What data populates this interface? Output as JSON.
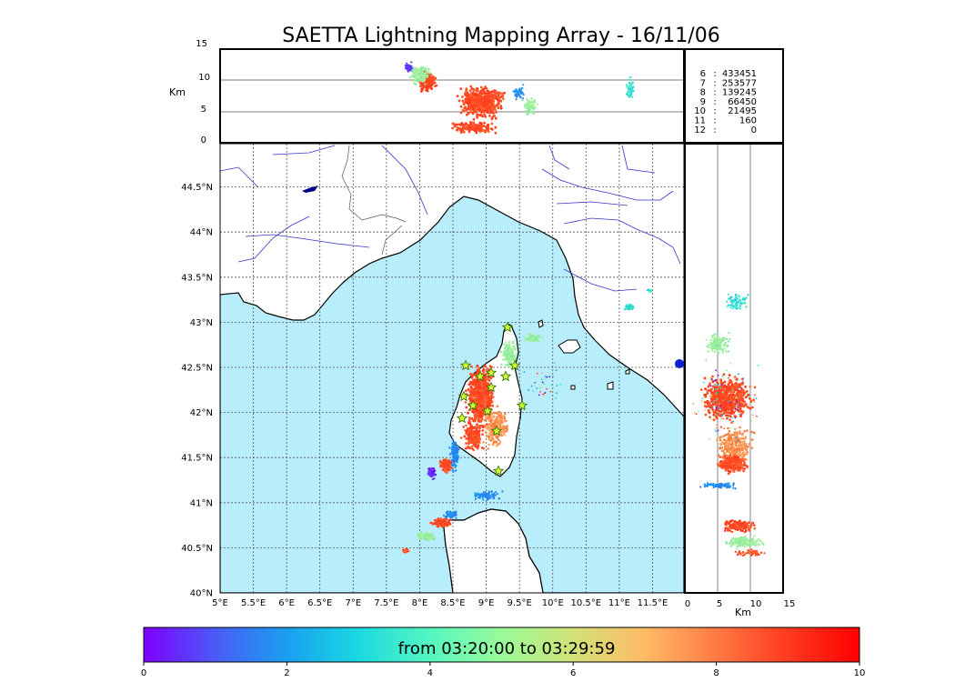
{
  "title": "SAETTA Lightning Mapping Array - 16/11/06",
  "colors": {
    "sea": "#b8eefb",
    "coast": "#000000",
    "rivers": "#3333cc",
    "borders": "#555555",
    "grid": "#555555",
    "star_fill": "#ccff33",
    "star_stroke": "#336600",
    "highlight_count": "#ff0000"
  },
  "top_panel": {
    "unit_label": "Km",
    "y_ticks": [
      "15",
      "10",
      "5",
      "0"
    ]
  },
  "side_panel": {
    "unit_label": "Km",
    "x_ticks": [
      "0",
      "5",
      "10",
      "15"
    ]
  },
  "map": {
    "lat_labels": [
      "44.5°N",
      "44°N",
      "43.5°N",
      "43°N",
      "42.5°N",
      "42°N",
      "41.5°N",
      "41°N",
      "40.5°N",
      "40°N"
    ],
    "lon_labels": [
      "5°E",
      "5.5°E",
      "6°E",
      "6.5°E",
      "7°E",
      "7.5°E",
      "8°E",
      "8.5°E",
      "9°E",
      "9.5°E",
      "10°E",
      "10.5°E",
      "11°E",
      "11.5°E"
    ]
  },
  "counts": [
    {
      "hour": "6",
      "value": "433451",
      "highlight": false
    },
    {
      "hour": "7",
      "value": "253577",
      "highlight": true
    },
    {
      "hour": "8",
      "value": "139245",
      "highlight": false
    },
    {
      "hour": "9",
      "value": "66450",
      "highlight": false
    },
    {
      "hour": "10",
      "value": "21495",
      "highlight": false
    },
    {
      "hour": "11",
      "value": "160",
      "highlight": false
    },
    {
      "hour": "12",
      "value": "0",
      "highlight": false
    }
  ],
  "colorbar": {
    "label": "from 03:20:00 to 03:29:59",
    "ticks": [
      "0",
      "2",
      "4",
      "6",
      "8",
      "10"
    ],
    "min": 0,
    "max": 10,
    "colors": [
      "#7f00ff",
      "#4a5af5",
      "#1a9ff0",
      "#1ad9e0",
      "#55f7c2",
      "#99fb99",
      "#d2e277",
      "#ffbb66",
      "#ff7a44",
      "#ff3a1f",
      "#ff0000"
    ]
  }
}
